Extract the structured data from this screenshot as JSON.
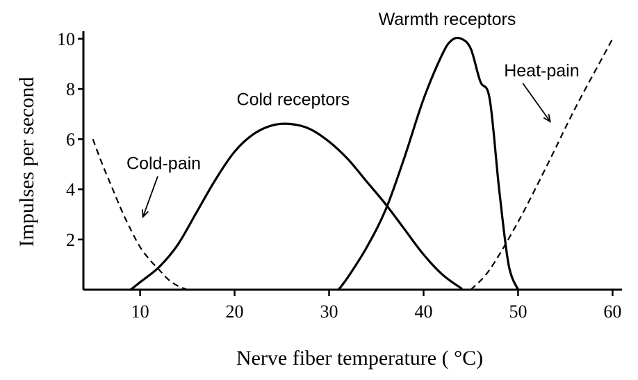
{
  "chart_data": {
    "type": "line",
    "title": "",
    "xlabel": "Nerve fiber temperature ( °C)",
    "ylabel": "Impulses per second",
    "xlim": [
      4,
      61
    ],
    "ylim": [
      0,
      10.3
    ],
    "x_ticks": [
      10,
      20,
      30,
      40,
      50,
      60
    ],
    "y_ticks": [
      2,
      4,
      6,
      8,
      10
    ],
    "grid": false,
    "legend": "none",
    "series": [
      {
        "name": "Cold-pain",
        "style": "dashed",
        "x": [
          5,
          6,
          7,
          8,
          9,
          10,
          11,
          12,
          13,
          14,
          15
        ],
        "y": [
          6.0,
          5.0,
          4.1,
          3.2,
          2.4,
          1.7,
          1.2,
          0.8,
          0.4,
          0.15,
          0.0
        ]
      },
      {
        "name": "Cold receptors",
        "style": "solid",
        "x": [
          9,
          10,
          12,
          14,
          16,
          18,
          20,
          22,
          24,
          26,
          28,
          30,
          32,
          34,
          36,
          38,
          40,
          42,
          44
        ],
        "y": [
          0.0,
          0.3,
          0.9,
          1.8,
          3.1,
          4.4,
          5.5,
          6.2,
          6.55,
          6.6,
          6.4,
          5.9,
          5.2,
          4.3,
          3.4,
          2.4,
          1.4,
          0.6,
          0.05
        ]
      },
      {
        "name": "Warmth receptors",
        "style": "solid",
        "x": [
          31,
          32,
          34,
          36,
          38,
          40,
          42,
          43,
          44,
          45,
          46,
          47,
          48,
          49,
          50
        ],
        "y": [
          0.0,
          0.5,
          1.7,
          3.2,
          5.3,
          7.6,
          9.4,
          9.95,
          10.0,
          9.6,
          8.3,
          7.6,
          4.0,
          1.0,
          0.0
        ]
      },
      {
        "name": "Heat-pain",
        "style": "dashed",
        "x": [
          45,
          47,
          50,
          53,
          56,
          59,
          60
        ],
        "y": [
          0.0,
          0.8,
          2.7,
          4.9,
          7.2,
          9.3,
          10.0
        ]
      }
    ],
    "annotations": [
      {
        "text": "Cold-pain",
        "x": 12.5,
        "y": 4.8,
        "arrow_to": [
          10.3,
          2.9
        ]
      },
      {
        "text": "Cold receptors",
        "x": 26.2,
        "y": 7.35,
        "arrow_to": null
      },
      {
        "text": "Warmth receptors",
        "x": 42.5,
        "y": 10.55,
        "arrow_to": null
      },
      {
        "text": "Heat-pain",
        "x": 52.5,
        "y": 8.5,
        "arrow_to": [
          53.4,
          6.7
        ]
      }
    ]
  }
}
